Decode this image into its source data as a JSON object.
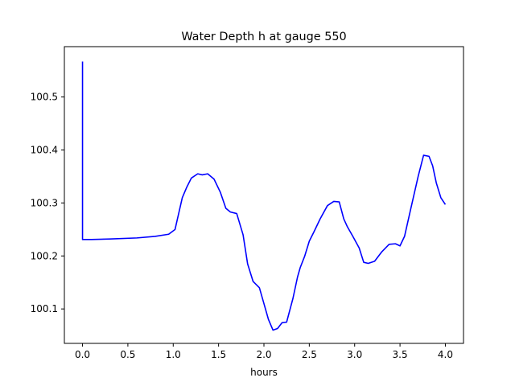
{
  "chart_data": {
    "type": "line",
    "title": "Water Depth h at gauge 550",
    "xlabel": "hours",
    "ylabel": "",
    "xlim": [
      -0.2,
      4.2
    ],
    "ylim": [
      100.035,
      100.595
    ],
    "xticks": [
      0.0,
      0.5,
      1.0,
      1.5,
      2.0,
      2.5,
      3.0,
      3.5,
      4.0
    ],
    "xtick_labels": [
      "0.0",
      "0.5",
      "1.0",
      "1.5",
      "2.0",
      "2.5",
      "3.0",
      "3.5",
      "4.0"
    ],
    "yticks": [
      100.1,
      100.2,
      100.3,
      100.4,
      100.5
    ],
    "ytick_labels": [
      "100.1",
      "100.2",
      "100.3",
      "100.4",
      "100.5"
    ],
    "grid": false,
    "line_color": "#0000ff",
    "series": [
      {
        "x": [
          0.0,
          0.0,
          0.0,
          0.1,
          0.3,
          0.6,
          0.8,
          0.95,
          1.02,
          1.1,
          1.15,
          1.2,
          1.27,
          1.32,
          1.38,
          1.45,
          1.52,
          1.58,
          1.63,
          1.7,
          1.77,
          1.82,
          1.88,
          1.95,
          2.0,
          2.05,
          2.1,
          2.15,
          2.2,
          2.25,
          2.32,
          2.37,
          2.4,
          2.45,
          2.5,
          2.55,
          2.62,
          2.7,
          2.77,
          2.83,
          2.88,
          2.92,
          2.98,
          3.05,
          3.1,
          3.15,
          3.22,
          3.3,
          3.38,
          3.45,
          3.5,
          3.55,
          3.62,
          3.7,
          3.76,
          3.82,
          3.86,
          3.9,
          3.95,
          4.0
        ],
        "y": [
          100.567,
          100.5,
          100.231,
          100.231,
          100.232,
          100.234,
          100.237,
          100.241,
          100.25,
          100.31,
          100.33,
          100.347,
          100.355,
          100.353,
          100.355,
          100.345,
          100.32,
          100.29,
          100.283,
          100.28,
          100.24,
          100.185,
          100.152,
          100.14,
          100.11,
          100.08,
          100.06,
          100.063,
          100.074,
          100.075,
          100.12,
          100.16,
          100.178,
          100.2,
          100.228,
          100.245,
          100.27,
          100.295,
          100.303,
          100.302,
          100.27,
          100.255,
          100.237,
          100.215,
          100.188,
          100.186,
          100.19,
          100.208,
          100.222,
          100.223,
          100.219,
          100.237,
          100.29,
          100.35,
          100.39,
          100.388,
          100.37,
          100.338,
          100.31,
          100.297
        ]
      }
    ]
  }
}
